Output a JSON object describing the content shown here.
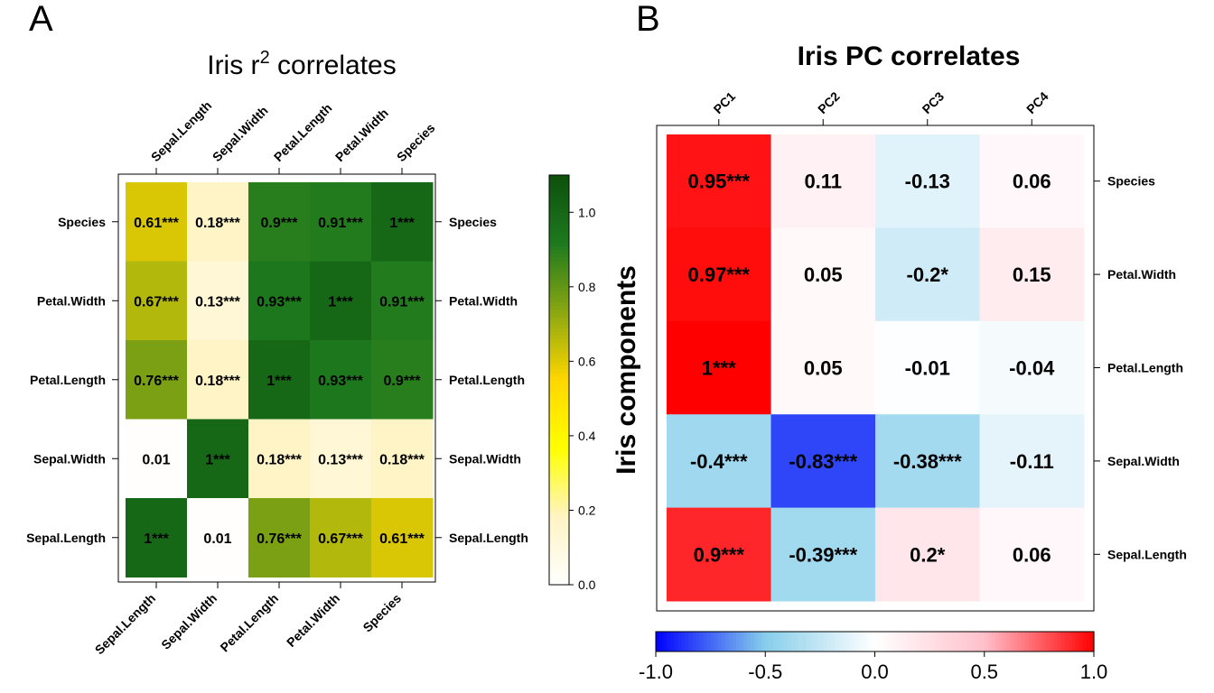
{
  "panels": [
    {
      "letter": "A"
    },
    {
      "letter": "B"
    }
  ],
  "chart_data": [
    {
      "type": "heatmap",
      "title": "Iris r",
      "title_superscript": "2",
      "title_suffix": " correlates",
      "rows": [
        "Species",
        "Petal.Width",
        "Petal.Length",
        "Sepal.Width",
        "Sepal.Length"
      ],
      "columns": [
        "Sepal.Length",
        "Sepal.Width",
        "Petal.Length",
        "Petal.Width",
        "Species"
      ],
      "values": [
        [
          0.61,
          0.18,
          0.9,
          0.91,
          1
        ],
        [
          0.67,
          0.13,
          0.93,
          1,
          0.91
        ],
        [
          0.76,
          0.18,
          1,
          0.93,
          0.9
        ],
        [
          0.01,
          1,
          0.18,
          0.13,
          0.18
        ],
        [
          1,
          0.01,
          0.76,
          0.67,
          0.61
        ]
      ],
      "labels": [
        [
          "0.61***",
          "0.18***",
          "0.9***",
          "0.91***",
          "1***"
        ],
        [
          "0.67***",
          "0.13***",
          "0.93***",
          "1***",
          "0.91***"
        ],
        [
          "0.76***",
          "0.18***",
          "1***",
          "0.93***",
          "0.9***"
        ],
        [
          "0.01",
          "1***",
          "0.18***",
          "0.13***",
          "0.18***"
        ],
        [
          "1***",
          "0.01",
          "0.76***",
          "0.67***",
          "0.61***"
        ]
      ],
      "colorbar": {
        "range": [
          0,
          1.1
        ],
        "ticks": [
          "0.0",
          "0.2",
          "0.4",
          "0.6",
          "0.8",
          "1.0"
        ],
        "colors": [
          "#ffffff",
          "#fff4c4",
          "#ffff00",
          "#ffd700",
          "#8ba712",
          "#1e7a1e",
          "#0d500d"
        ]
      }
    },
    {
      "type": "heatmap",
      "title": "Iris PC correlates",
      "ylabel": "Iris components",
      "rows": [
        "Species",
        "Petal.Width",
        "Petal.Length",
        "Sepal.Width",
        "Sepal.Length"
      ],
      "columns": [
        "PC1",
        "PC2",
        "PC3",
        "PC4"
      ],
      "values": [
        [
          0.95,
          0.11,
          -0.13,
          0.06
        ],
        [
          0.97,
          0.05,
          -0.2,
          0.15
        ],
        [
          1,
          0.05,
          -0.01,
          -0.04
        ],
        [
          -0.4,
          -0.83,
          -0.38,
          -0.11
        ],
        [
          0.9,
          -0.39,
          0.2,
          0.06
        ]
      ],
      "labels": [
        [
          "0.95***",
          "0.11",
          "-0.13",
          "0.06"
        ],
        [
          "0.97***",
          "0.05",
          "-0.2*",
          "0.15"
        ],
        [
          "1***",
          "0.05",
          "-0.01",
          "-0.04"
        ],
        [
          "-0.4***",
          "-0.83***",
          "-0.38***",
          "-0.11"
        ],
        [
          "0.9***",
          "-0.39***",
          "0.2*",
          "0.06"
        ]
      ],
      "colorbar": {
        "range": [
          -1,
          1
        ],
        "ticks": [
          "-1.0",
          "-0.5",
          "0.0",
          "0.5",
          "1.0"
        ],
        "colors": [
          "#0000ff",
          "#87ceeb",
          "#ffffff",
          "#ffc0cb",
          "#ff0000"
        ]
      }
    }
  ]
}
